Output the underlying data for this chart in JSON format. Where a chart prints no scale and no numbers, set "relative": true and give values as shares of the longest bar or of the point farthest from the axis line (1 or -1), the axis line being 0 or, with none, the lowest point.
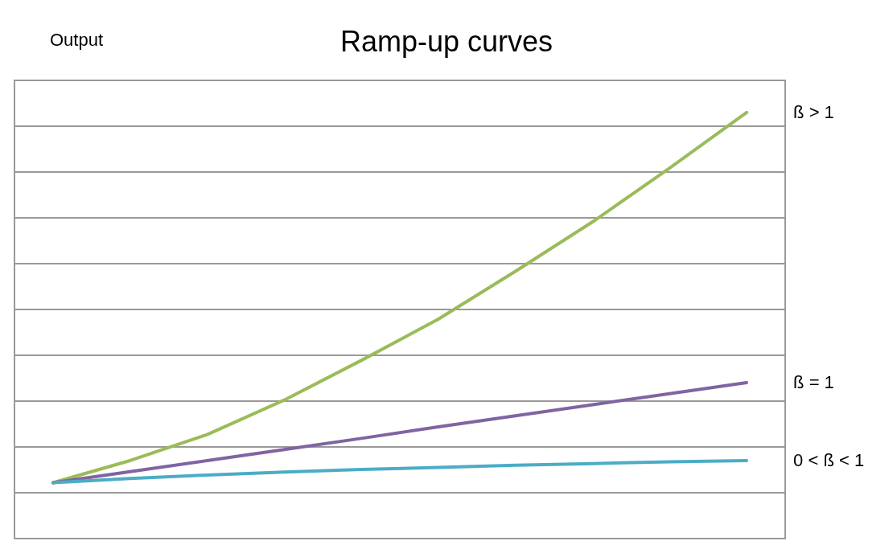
{
  "chart_data": {
    "type": "line",
    "title": "Ramp-up curves",
    "ylabel": "Output",
    "relative": true,
    "grid": "y",
    "legend": false,
    "marker": "none",
    "line_style": "solid",
    "categories": [
      null,
      null,
      null,
      null,
      null,
      null,
      null,
      null,
      null,
      null
    ],
    "series": [
      {
        "name": "ß > 1",
        "color": "#9bbb59",
        "values": [
          0.131,
          0.183,
          0.244,
          0.325,
          0.418,
          0.515,
          0.627,
          0.743,
          0.869,
          1
        ]
      },
      {
        "name": "ß = 1",
        "color": "#8064a2",
        "values": [
          0.131,
          0.157,
          0.183,
          0.209,
          0.235,
          0.262,
          0.288,
          0.314,
          0.34,
          0.366
        ]
      },
      {
        "name": "0 < ß < 1",
        "color": "#4bacc6",
        "values": [
          0.131,
          0.141,
          0.149,
          0.156,
          0.162,
          0.167,
          0.172,
          0.176,
          0.18,
          0.183
        ]
      }
    ]
  }
}
